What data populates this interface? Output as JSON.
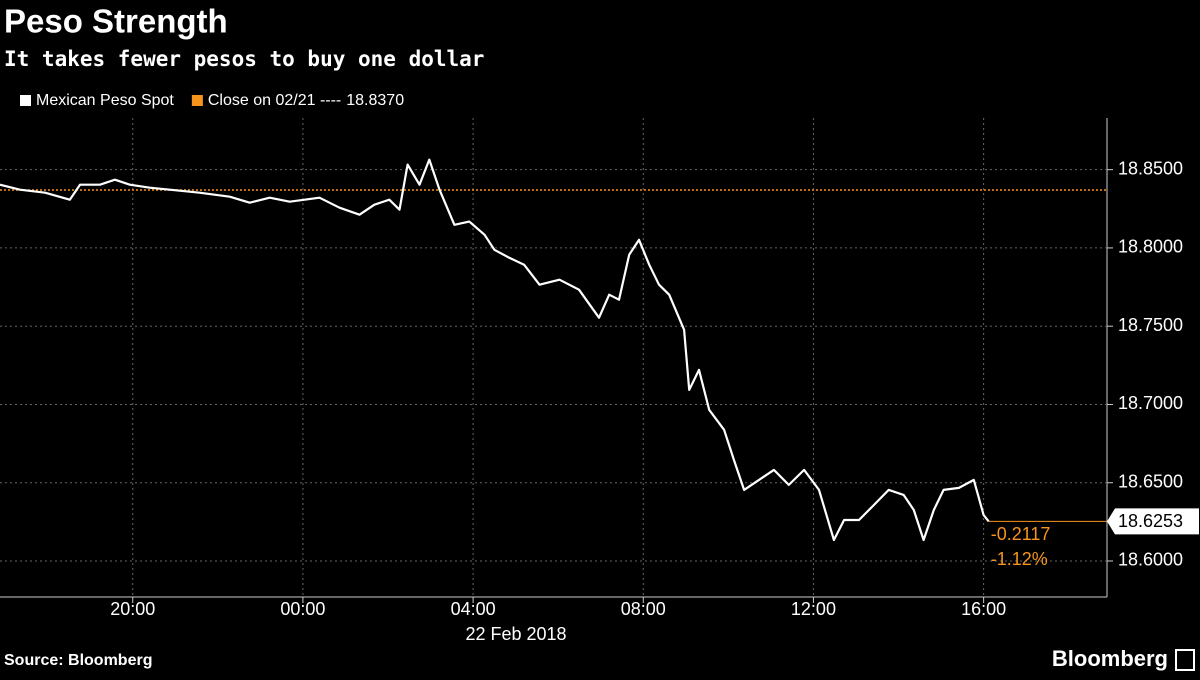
{
  "chart_data": {
    "type": "line",
    "title": "Peso Strength",
    "subtitle": "It takes fewer pesos to buy one dollar",
    "source": "Source: Bloomberg",
    "brand": "Bloomberg",
    "x_label": "22 Feb 2018",
    "xlim": [
      -7.12,
      18.9
    ],
    "xticks": [
      {
        "value": -4,
        "label": "20:00"
      },
      {
        "value": 0,
        "label": "00:00"
      },
      {
        "value": 4,
        "label": "04:00"
      },
      {
        "value": 8,
        "label": "08:00"
      },
      {
        "value": 12,
        "label": "12:00"
      },
      {
        "value": 16,
        "label": "16:00"
      }
    ],
    "ylim": [
      18.577,
      18.883
    ],
    "yticks": [
      {
        "value": 18.6,
        "label": "18.6000"
      },
      {
        "value": 18.65,
        "label": "18.6500"
      },
      {
        "value": 18.7,
        "label": "18.7000"
      },
      {
        "value": 18.75,
        "label": "18.7500"
      },
      {
        "value": 18.8,
        "label": "18.8000"
      },
      {
        "value": 18.85,
        "label": "18.8500"
      }
    ],
    "grid": true,
    "x": [
      -7.12,
      -6.65,
      -6.06,
      -5.48,
      -5.24,
      -4.77,
      -4.42,
      -4.07,
      -3.6,
      -3.13,
      -2.43,
      -1.72,
      -1.25,
      -0.78,
      -0.31,
      0.39,
      0.86,
      1.33,
      1.68,
      2.03,
      2.27,
      2.46,
      2.74,
      2.97,
      3.21,
      3.56,
      3.91,
      4.27,
      4.5,
      4.85,
      5.2,
      5.56,
      6.03,
      6.49,
      6.96,
      7.2,
      7.43,
      7.67,
      7.9,
      8.14,
      8.37,
      8.61,
      8.96,
      9.08,
      9.31,
      9.55,
      9.9,
      10.13,
      10.37,
      10.72,
      11.07,
      11.42,
      11.78,
      12.13,
      12.48,
      12.72,
      13.07,
      13.42,
      13.77,
      14.12,
      14.36,
      14.59,
      14.83,
      15.06,
      15.42,
      15.77,
      16.0,
      16.12
    ],
    "series": [
      {
        "name": "Mexican Peso Spot",
        "color": "#ffffff",
        "values": [
          18.8404,
          18.8372,
          18.8353,
          18.8308,
          18.8404,
          18.8404,
          18.8436,
          18.8404,
          18.8385,
          18.8372,
          18.8353,
          18.8327,
          18.8289,
          18.8321,
          18.8295,
          18.8321,
          18.8257,
          18.8212,
          18.8276,
          18.8308,
          18.8244,
          18.8532,
          18.8404,
          18.8564,
          18.8372,
          18.8148,
          18.8168,
          18.8084,
          18.7988,
          18.7937,
          18.7893,
          18.7765,
          18.7797,
          18.7733,
          18.7554,
          18.7701,
          18.7669,
          18.7957,
          18.8052,
          18.7893,
          18.7765,
          18.7701,
          18.7477,
          18.7093,
          18.7221,
          18.6965,
          18.6838,
          18.6646,
          18.6454,
          18.6518,
          18.6582,
          18.6486,
          18.6582,
          18.6454,
          18.6134,
          18.6262,
          18.6262,
          18.6358,
          18.6454,
          18.6422,
          18.6326,
          18.6134,
          18.6326,
          18.6454,
          18.6467,
          18.6518,
          18.6294,
          18.6253
        ]
      }
    ],
    "reference_line": {
      "label": "Close on 02/21 ----",
      "value": 18.837,
      "value_label": "18.8370",
      "color": "#f7941d"
    },
    "last_value": {
      "value": 18.6253,
      "label": "18.6253"
    },
    "change": "-0.2117",
    "change_pct": "-1.12%"
  }
}
